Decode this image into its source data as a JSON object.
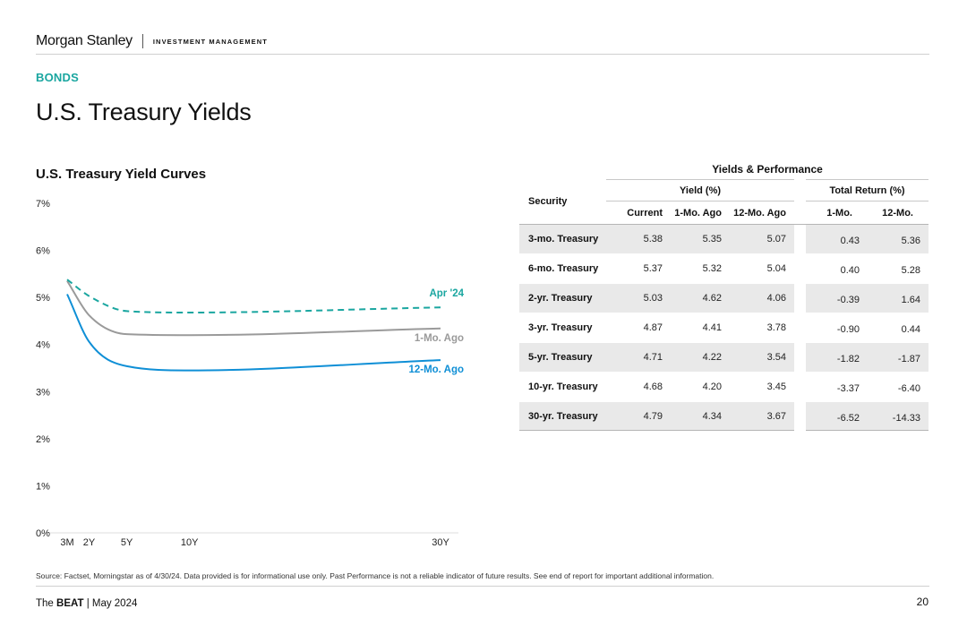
{
  "header": {
    "logo": "Morgan Stanley",
    "division": "INVESTMENT MANAGEMENT"
  },
  "kicker": "BONDS",
  "page_title": "U.S. Treasury Yields",
  "colors": {
    "accent_teal": "#1aa6a0",
    "current": "#1aa6a0",
    "one_mo": "#9a9a9a",
    "twelve_mo": "#0f8fd6"
  },
  "chart_data": {
    "type": "line",
    "title": "U.S. Treasury Yield Curves",
    "xlabel": "",
    "ylabel": "",
    "x_tick_labels": [
      "3M",
      "2Y",
      "5Y",
      "10Y",
      "30Y"
    ],
    "x": [
      0.25,
      2,
      5,
      10,
      30
    ],
    "y_tick_labels": [
      "0%",
      "1%",
      "2%",
      "3%",
      "4%",
      "5%",
      "6%",
      "7%"
    ],
    "ylim": [
      0,
      7
    ],
    "grid": false,
    "series": [
      {
        "name": "Apr '24",
        "style": "dashed",
        "values": [
          5.38,
          5.03,
          4.71,
          4.68,
          4.79
        ]
      },
      {
        "name": "1-Mo. Ago",
        "style": "solid",
        "values": [
          5.35,
          4.62,
          4.22,
          4.2,
          4.34
        ]
      },
      {
        "name": "12-Mo. Ago",
        "style": "solid",
        "values": [
          5.07,
          4.06,
          3.54,
          3.45,
          3.67
        ]
      }
    ]
  },
  "table": {
    "title": "Yields & Performance",
    "security_header": "Security",
    "yield_group": "Yield (%)",
    "return_group": "Total Return (%)",
    "yield_cols": [
      "Current",
      "1-Mo. Ago",
      "12-Mo. Ago"
    ],
    "return_cols": [
      "1-Mo.",
      "12-Mo."
    ],
    "rows": [
      {
        "name": "3-mo. Treasury",
        "current": "5.38",
        "one_mo_ago": "5.35",
        "twelve_mo_ago": "5.07",
        "ret_1mo": "0.43",
        "ret_12mo": "5.36"
      },
      {
        "name": "6-mo. Treasury",
        "current": "5.37",
        "one_mo_ago": "5.32",
        "twelve_mo_ago": "5.04",
        "ret_1mo": "0.40",
        "ret_12mo": "5.28"
      },
      {
        "name": "2-yr. Treasury",
        "current": "5.03",
        "one_mo_ago": "4.62",
        "twelve_mo_ago": "4.06",
        "ret_1mo": "-0.39",
        "ret_12mo": "1.64"
      },
      {
        "name": "3-yr. Treasury",
        "current": "4.87",
        "one_mo_ago": "4.41",
        "twelve_mo_ago": "3.78",
        "ret_1mo": "-0.90",
        "ret_12mo": "0.44"
      },
      {
        "name": "5-yr. Treasury",
        "current": "4.71",
        "one_mo_ago": "4.22",
        "twelve_mo_ago": "3.54",
        "ret_1mo": "-1.82",
        "ret_12mo": "-1.87"
      },
      {
        "name": "10-yr. Treasury",
        "current": "4.68",
        "one_mo_ago": "4.20",
        "twelve_mo_ago": "3.45",
        "ret_1mo": "-3.37",
        "ret_12mo": "-6.40"
      },
      {
        "name": "30-yr. Treasury",
        "current": "4.79",
        "one_mo_ago": "4.34",
        "twelve_mo_ago": "3.67",
        "ret_1mo": "-6.52",
        "ret_12mo": "-14.33"
      }
    ]
  },
  "source": "Source: Factset, Morningstar as of 4/30/24. Data provided is for informational use only. Past Performance is not a reliable indicator of future results. See end of report for important additional information.",
  "footer": {
    "brand_prefix": "The",
    "brand": "BEAT",
    "issue": "| May 2024",
    "page_number": "20"
  }
}
